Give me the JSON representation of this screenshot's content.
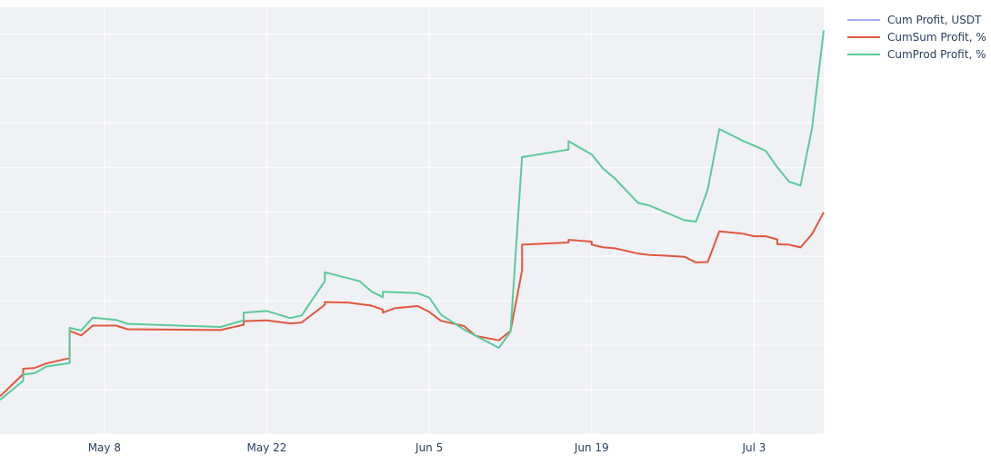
{
  "chart_data": {
    "type": "line",
    "title": "",
    "xlabel": "",
    "ylabel": "",
    "x_ticks": [
      "May 8",
      "May 22",
      "Jun 5",
      "Jun 19",
      "Jul 3"
    ],
    "x_tick_dates": [
      "2023-05-08",
      "2023-05-22",
      "2023-06-05",
      "2023-06-19",
      "2023-07-03"
    ],
    "x_range": [
      "2023-04-29",
      "2023-07-09"
    ],
    "y_range": [
      -20,
      76
    ],
    "y_grid_step": 10,
    "grid": true,
    "legend_position": "top-right",
    "series": [
      {
        "name": "Cum Profit, USDT",
        "color": "#a6b0f5",
        "points": []
      },
      {
        "name": "CumSum Profit, %",
        "color": "#e0583f",
        "points": [
          [
            "2023-04-29",
            -11.5
          ],
          [
            "2023-05-01",
            -6.5
          ],
          [
            "2023-05-01",
            -5.3
          ],
          [
            "2023-05-02",
            -5.1
          ],
          [
            "2023-05-03",
            -4.1
          ],
          [
            "2023-05-05",
            -2.9
          ],
          [
            "2023-05-05",
            3.2
          ],
          [
            "2023-05-06",
            2.2
          ],
          [
            "2023-05-07",
            4.4
          ],
          [
            "2023-05-09",
            4.4
          ],
          [
            "2023-05-10",
            3.6
          ],
          [
            "2023-05-18",
            3.4
          ],
          [
            "2023-05-20",
            4.6
          ],
          [
            "2023-05-20",
            5.4
          ],
          [
            "2023-05-22",
            5.6
          ],
          [
            "2023-05-24",
            4.9
          ],
          [
            "2023-05-25",
            5.1
          ],
          [
            "2023-05-27",
            9.1
          ],
          [
            "2023-05-27",
            9.7
          ],
          [
            "2023-05-29",
            9.6
          ],
          [
            "2023-05-31",
            8.9
          ],
          [
            "2023-06-01",
            8.0
          ],
          [
            "2023-06-01",
            7.3
          ],
          [
            "2023-06-02",
            8.3
          ],
          [
            "2023-06-04",
            8.8
          ],
          [
            "2023-06-05",
            7.5
          ],
          [
            "2023-06-06",
            5.5
          ],
          [
            "2023-06-08",
            4.3
          ],
          [
            "2023-06-09",
            2.1
          ],
          [
            "2023-06-11",
            1.1
          ],
          [
            "2023-06-12",
            3.2
          ],
          [
            "2023-06-13",
            16.8
          ],
          [
            "2023-06-13",
            22.6
          ],
          [
            "2023-06-17",
            23.1
          ],
          [
            "2023-06-17",
            23.7
          ],
          [
            "2023-06-19",
            23.3
          ],
          [
            "2023-06-19",
            22.6
          ],
          [
            "2023-06-20",
            22.0
          ],
          [
            "2023-06-21",
            21.8
          ],
          [
            "2023-06-23",
            20.6
          ],
          [
            "2023-06-24",
            20.3
          ],
          [
            "2023-06-25",
            20.2
          ],
          [
            "2023-06-27",
            19.9
          ],
          [
            "2023-06-28",
            18.6
          ],
          [
            "2023-06-29",
            18.7
          ],
          [
            "2023-06-30",
            25.6
          ],
          [
            "2023-07-02",
            25.1
          ],
          [
            "2023-07-03",
            24.5
          ],
          [
            "2023-07-04",
            24.5
          ],
          [
            "2023-07-05",
            23.8
          ],
          [
            "2023-07-05",
            22.7
          ],
          [
            "2023-07-06",
            22.6
          ],
          [
            "2023-07-07",
            22.0
          ],
          [
            "2023-07-08",
            25.0
          ],
          [
            "2023-07-09",
            29.9
          ]
        ]
      },
      {
        "name": "CumProd Profit, %",
        "color": "#5cc99a",
        "points": [
          [
            "2023-04-29",
            -12.3
          ],
          [
            "2023-05-01",
            -8.0
          ],
          [
            "2023-05-01",
            -6.6
          ],
          [
            "2023-05-02",
            -6.3
          ],
          [
            "2023-05-03",
            -4.8
          ],
          [
            "2023-05-05",
            -4.0
          ],
          [
            "2023-05-05",
            3.9
          ],
          [
            "2023-05-06",
            3.3
          ],
          [
            "2023-05-07",
            6.2
          ],
          [
            "2023-05-09",
            5.7
          ],
          [
            "2023-05-10",
            4.8
          ],
          [
            "2023-05-18",
            4.1
          ],
          [
            "2023-05-20",
            5.6
          ],
          [
            "2023-05-20",
            7.3
          ],
          [
            "2023-05-22",
            7.7
          ],
          [
            "2023-05-24",
            6.1
          ],
          [
            "2023-05-25",
            6.7
          ],
          [
            "2023-05-27",
            14.4
          ],
          [
            "2023-05-27",
            16.4
          ],
          [
            "2023-05-30",
            14.4
          ],
          [
            "2023-05-31",
            12.1
          ],
          [
            "2023-06-01",
            10.8
          ],
          [
            "2023-06-01",
            12.0
          ],
          [
            "2023-06-04",
            11.7
          ],
          [
            "2023-06-05",
            10.7
          ],
          [
            "2023-06-06",
            6.9
          ],
          [
            "2023-06-08",
            3.5
          ],
          [
            "2023-06-09",
            2.1
          ],
          [
            "2023-06-11",
            -0.6
          ],
          [
            "2023-06-12",
            3.0
          ],
          [
            "2023-06-13",
            42.3
          ],
          [
            "2023-06-17",
            44.0
          ],
          [
            "2023-06-17",
            45.9
          ],
          [
            "2023-06-19",
            42.9
          ],
          [
            "2023-06-20",
            39.7
          ],
          [
            "2023-06-21",
            37.5
          ],
          [
            "2023-06-23",
            32.0
          ],
          [
            "2023-06-24",
            31.4
          ],
          [
            "2023-06-27",
            28.1
          ],
          [
            "2023-06-28",
            27.8
          ],
          [
            "2023-06-29",
            35.0
          ],
          [
            "2023-06-30",
            48.6
          ],
          [
            "2023-07-02",
            46.0
          ],
          [
            "2023-07-03",
            44.9
          ],
          [
            "2023-07-04",
            43.7
          ],
          [
            "2023-07-05",
            40.0
          ],
          [
            "2023-07-06",
            36.8
          ],
          [
            "2023-07-07",
            35.9
          ],
          [
            "2023-07-08",
            48.9
          ],
          [
            "2023-07-09",
            70.8
          ]
        ]
      }
    ]
  }
}
